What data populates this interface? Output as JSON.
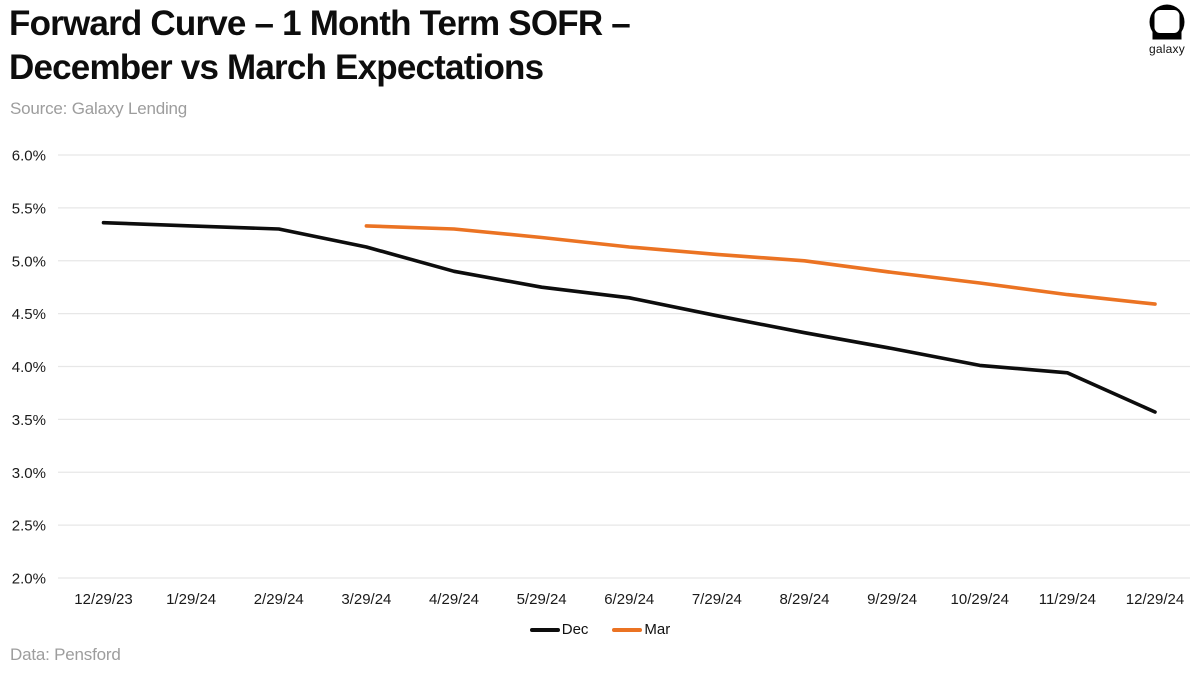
{
  "header": {
    "title_line1": "Forward Curve – 1 Month Term SOFR –",
    "title_line2": "December vs March Expectations",
    "source": "Source: Galaxy Lending",
    "logo_text": "galaxy"
  },
  "footer": {
    "data_credit": "Data: Pensford"
  },
  "colors": {
    "dec_line": "#0d0d0d",
    "mar_line": "#EB7323",
    "grid": "#e7e7e7",
    "axis_text": "#1a1a1a",
    "muted_text": "#9d9d9d"
  },
  "chart_data": {
    "type": "line",
    "title": "Forward Curve – 1 Month Term SOFR – December vs March Expectations",
    "xlabel": "",
    "ylabel": "",
    "categories": [
      "12/29/23",
      "1/29/24",
      "2/29/24",
      "3/29/24",
      "4/29/24",
      "5/29/24",
      "6/29/24",
      "7/29/24",
      "8/29/24",
      "9/29/24",
      "10/29/24",
      "11/29/24",
      "12/29/24"
    ],
    "series": [
      {
        "name": "Dec",
        "color": "#0d0d0d",
        "values": [
          5.36,
          5.33,
          5.3,
          5.13,
          4.9,
          4.75,
          4.65,
          4.48,
          4.32,
          4.17,
          4.01,
          3.94,
          3.57
        ]
      },
      {
        "name": "Mar",
        "color": "#EB7323",
        "values": [
          null,
          null,
          null,
          5.33,
          5.3,
          5.22,
          5.13,
          5.06,
          5.0,
          4.89,
          4.79,
          4.68,
          4.59
        ]
      }
    ],
    "y_ticks": [
      2.0,
      2.5,
      3.0,
      3.5,
      4.0,
      4.5,
      5.0,
      5.5,
      6.0
    ],
    "y_tick_suffix": "%",
    "ylim": [
      2.0,
      6.0
    ],
    "grid": "horizontal",
    "legend_position": "bottom"
  }
}
